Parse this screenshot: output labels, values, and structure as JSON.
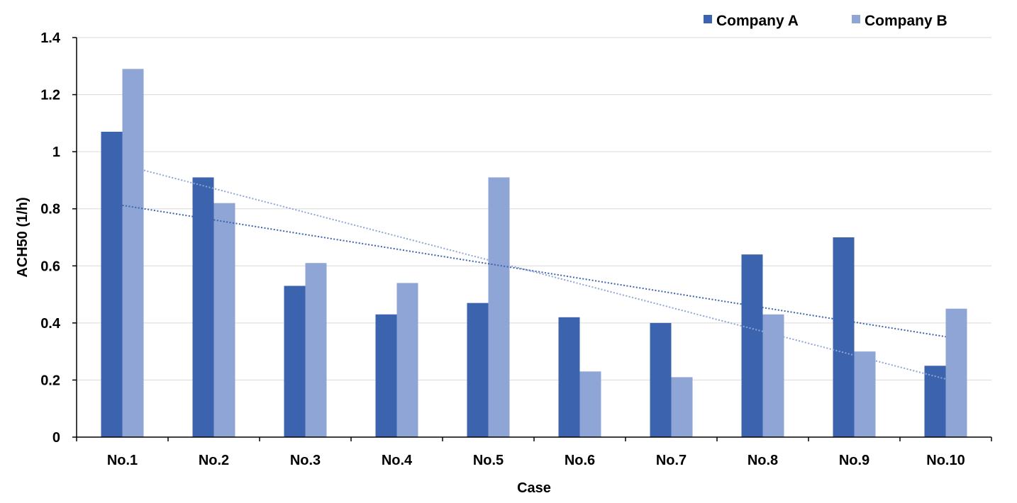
{
  "chart_data": {
    "type": "bar",
    "title": "",
    "xlabel": "Case",
    "ylabel": "ACH50 (1/h)",
    "categories": [
      "No.1",
      "No.2",
      "No.3",
      "No.4",
      "No.5",
      "No.6",
      "No.7",
      "No.8",
      "No.9",
      "No.10"
    ],
    "series": [
      {
        "name": "Company A",
        "color": "#3c64ae",
        "values": [
          1.07,
          0.91,
          0.53,
          0.43,
          0.47,
          0.42,
          0.4,
          0.64,
          0.7,
          0.25
        ]
      },
      {
        "name": "Company B",
        "color": "#8fa5d6",
        "values": [
          1.29,
          0.82,
          0.61,
          0.54,
          0.91,
          0.23,
          0.21,
          0.43,
          0.3,
          0.45
        ]
      }
    ],
    "trendlines": [
      {
        "series": "Company A",
        "type": "linear",
        "style": "dotted",
        "color": "#3c64ae"
      },
      {
        "series": "Company B",
        "type": "linear",
        "style": "dotted",
        "color": "#8fa5d6"
      }
    ],
    "ylim": [
      0,
      1.4
    ],
    "yticks": [
      "0",
      "0.2",
      "0.4",
      "0.6",
      "0.8",
      "1",
      "1.2",
      "1.4"
    ],
    "grid": true,
    "legend_position": "top-right"
  }
}
